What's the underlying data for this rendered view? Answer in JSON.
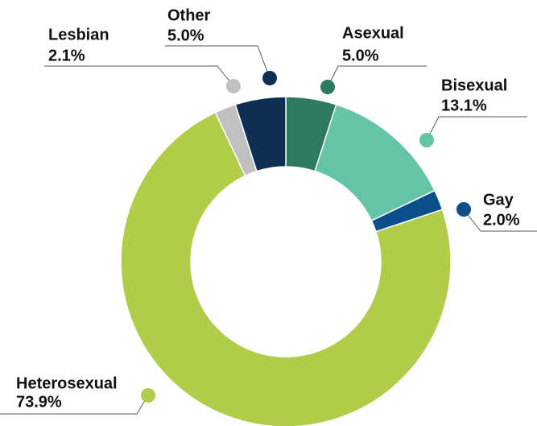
{
  "chart_data": {
    "type": "donut",
    "categories": [
      "Asexual",
      "Bisexual",
      "Gay",
      "Heterosexual",
      "Lesbian",
      "Other"
    ],
    "values": [
      5.0,
      13.1,
      2.0,
      73.9,
      2.1,
      5.0
    ],
    "value_labels": [
      "5.0%",
      "13.1%",
      "2.0%",
      "73.9%",
      "2.1%",
      "5.0%"
    ],
    "colors": [
      "#2e7a60",
      "#66c4a6",
      "#0a4f8a",
      "#b1cc48",
      "#c0c0c0",
      "#0e2f52"
    ]
  }
}
